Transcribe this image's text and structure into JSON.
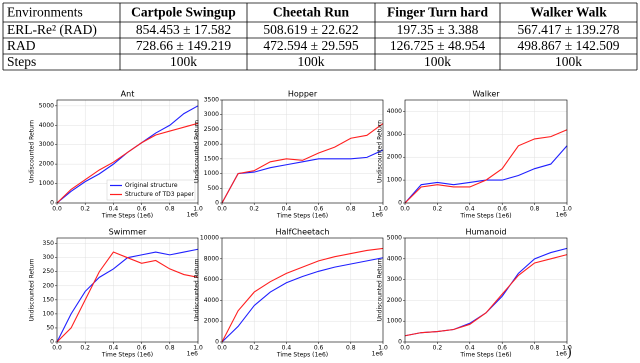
{
  "table": {
    "header": [
      "Environments",
      "Cartpole Swingup",
      "Cheetah Run",
      "Finger Turn hard",
      "Walker Walk"
    ],
    "rows": [
      [
        "ERL-Re² (RAD)",
        "854.453 ± 17.582",
        "508.619 ± 22.622",
        "197.35 ± 3.388",
        "567.417 ± 139.278"
      ],
      [
        "RAD",
        "728.66 ± 149.219",
        "472.594 ± 29.595",
        "126.725 ± 48.954",
        "498.867 ± 142.509"
      ],
      [
        "Steps",
        "100k",
        "100k",
        "100k",
        "100k"
      ]
    ]
  },
  "chart_data": [
    {
      "type": "line",
      "title": "Ant",
      "xlabel": "Time Steps (1e6)",
      "ylabel": "Undiscounted Return",
      "x_offset_label": "1e6",
      "x": [
        0,
        0.1,
        0.2,
        0.3,
        0.4,
        0.5,
        0.6,
        0.7,
        0.8,
        0.9,
        1.0
      ],
      "series": [
        {
          "name": "Original structure",
          "color": "#1f1fff",
          "values": [
            0,
            600,
            1100,
            1500,
            2000,
            2600,
            3100,
            3600,
            4000,
            4600,
            5000
          ]
        },
        {
          "name": "Structure of TD3 paper",
          "color": "#ff1f1f",
          "values": [
            0,
            700,
            1200,
            1700,
            2100,
            2600,
            3100,
            3500,
            3700,
            3900,
            4100
          ]
        }
      ],
      "xlim": [
        0,
        1
      ],
      "xticks": [
        {
          "value": 0,
          "label": "0.0"
        },
        {
          "value": 0.2,
          "label": "0.2"
        },
        {
          "value": 0.4,
          "label": "0.4"
        },
        {
          "value": 0.6,
          "label": "0.6"
        },
        {
          "value": 0.8,
          "label": "0.8"
        },
        {
          "value": 1,
          "label": "1.0"
        }
      ],
      "ylim": [
        0,
        5300
      ],
      "yticks": [
        0,
        1000,
        2000,
        3000,
        4000,
        5000
      ],
      "grid": true,
      "legend": "lower right"
    },
    {
      "type": "line",
      "title": "Hopper",
      "xlabel": "Time Steps (1e6)",
      "ylabel": "Undiscounted Return",
      "x_offset_label": "1e6",
      "x": [
        0,
        0.1,
        0.2,
        0.3,
        0.4,
        0.5,
        0.6,
        0.7,
        0.8,
        0.9,
        1.0
      ],
      "series": [
        {
          "color": "#1f1fff",
          "values": [
            0,
            1000,
            1050,
            1200,
            1300,
            1400,
            1500,
            1500,
            1500,
            1550,
            1800
          ]
        },
        {
          "color": "#ff1f1f",
          "values": [
            0,
            1000,
            1100,
            1400,
            1500,
            1450,
            1700,
            1900,
            2200,
            2300,
            2700
          ]
        }
      ],
      "xlim": [
        0,
        1
      ],
      "xticks": [
        {
          "value": 0,
          "label": "0.0"
        },
        {
          "value": 0.2,
          "label": "0.2"
        },
        {
          "value": 0.4,
          "label": "0.4"
        },
        {
          "value": 0.6,
          "label": "0.6"
        },
        {
          "value": 0.8,
          "label": "0.8"
        },
        {
          "value": 1,
          "label": "1.0"
        }
      ],
      "ylim": [
        0,
        3500
      ],
      "yticks": [
        0,
        500,
        1000,
        1500,
        2000,
        2500,
        3000,
        3500
      ],
      "grid": true
    },
    {
      "type": "line",
      "title": "Walker",
      "xlabel": "Time Steps (1e6)",
      "ylabel": "Undiscounted Return",
      "x_offset_label": "1e6",
      "x": [
        0,
        0.1,
        0.2,
        0.3,
        0.4,
        0.5,
        0.6,
        0.7,
        0.8,
        0.9,
        1.0
      ],
      "series": [
        {
          "color": "#1f1fff",
          "values": [
            0,
            800,
            900,
            800,
            900,
            1000,
            1000,
            1200,
            1500,
            1700,
            2500
          ]
        },
        {
          "color": "#ff1f1f",
          "values": [
            0,
            700,
            800,
            700,
            700,
            1000,
            1500,
            2500,
            2800,
            2900,
            3200
          ]
        }
      ],
      "xlim": [
        0,
        1
      ],
      "xticks": [
        {
          "value": 0,
          "label": "0.0"
        },
        {
          "value": 0.2,
          "label": "0.2"
        },
        {
          "value": 0.4,
          "label": "0.4"
        },
        {
          "value": 0.6,
          "label": "0.6"
        },
        {
          "value": 0.8,
          "label": "0.8"
        },
        {
          "value": 1,
          "label": "1.0"
        }
      ],
      "ylim": [
        0,
        4500
      ],
      "yticks": [
        0,
        1000,
        2000,
        3000,
        4000
      ],
      "grid": true
    },
    {
      "type": "line",
      "title": "Swimmer",
      "xlabel": "Time Steps (1e6)",
      "ylabel": "Undiscounted Return",
      "x_offset_label": "1e6",
      "x": [
        0,
        0.1,
        0.2,
        0.3,
        0.4,
        0.5,
        0.6,
        0.7,
        0.8,
        0.9,
        1.0
      ],
      "series": [
        {
          "color": "#1f1fff",
          "values": [
            0,
            100,
            180,
            230,
            260,
            300,
            310,
            320,
            310,
            320,
            330
          ]
        },
        {
          "color": "#ff1f1f",
          "values": [
            0,
            50,
            150,
            250,
            320,
            300,
            280,
            290,
            260,
            240,
            230
          ]
        }
      ],
      "xlim": [
        0,
        1
      ],
      "xticks": [
        {
          "value": 0,
          "label": "0.0"
        },
        {
          "value": 0.2,
          "label": "0.2"
        },
        {
          "value": 0.4,
          "label": "0.4"
        },
        {
          "value": 0.6,
          "label": "0.6"
        },
        {
          "value": 0.8,
          "label": "0.8"
        },
        {
          "value": 1,
          "label": "1.0"
        }
      ],
      "ylim": [
        0,
        370
      ],
      "yticks": [
        0,
        50,
        100,
        150,
        200,
        250,
        300,
        350
      ],
      "grid": true
    },
    {
      "type": "line",
      "title": "HalfCheetach",
      "xlabel": "Time Steps (1e6)",
      "ylabel": "Undiscounted Return",
      "x_offset_label": "1e6",
      "x": [
        0,
        0.1,
        0.2,
        0.3,
        0.4,
        0.5,
        0.6,
        0.7,
        0.8,
        0.9,
        1.0
      ],
      "series": [
        {
          "color": "#1f1fff",
          "values": [
            0,
            1500,
            3500,
            4800,
            5700,
            6300,
            6800,
            7200,
            7500,
            7800,
            8100
          ]
        },
        {
          "color": "#ff1f1f",
          "values": [
            0,
            3000,
            4800,
            5800,
            6600,
            7200,
            7800,
            8200,
            8500,
            8800,
            9000
          ]
        }
      ],
      "xlim": [
        0,
        1
      ],
      "xticks": [
        {
          "value": 0,
          "label": "0.0"
        },
        {
          "value": 0.2,
          "label": "0.2"
        },
        {
          "value": 0.4,
          "label": "0.4"
        },
        {
          "value": 0.6,
          "label": "0.6"
        },
        {
          "value": 0.8,
          "label": "0.8"
        },
        {
          "value": 1,
          "label": "1.0"
        }
      ],
      "ylim": [
        0,
        10000
      ],
      "yticks": [
        0,
        2000,
        4000,
        6000,
        8000,
        10000
      ],
      "grid": true
    },
    {
      "type": "line",
      "title": "Humanoid",
      "xlabel": "Time Steps (1e6)",
      "ylabel": "Undiscounted Return",
      "x_offset_label": "1e6",
      "x": [
        0,
        0.1,
        0.2,
        0.3,
        0.4,
        0.5,
        0.6,
        0.7,
        0.8,
        0.9,
        1.0
      ],
      "series": [
        {
          "color": "#1f1fff",
          "values": [
            300,
            450,
            500,
            600,
            900,
            1400,
            2200,
            3300,
            4000,
            4300,
            4500
          ]
        },
        {
          "color": "#ff1f1f",
          "values": [
            300,
            450,
            500,
            600,
            850,
            1400,
            2300,
            3200,
            3800,
            4000,
            4200
          ]
        }
      ],
      "xlim": [
        0,
        1
      ],
      "xticks": [
        {
          "value": 0,
          "label": "0.0"
        },
        {
          "value": 0.2,
          "label": "0.2"
        },
        {
          "value": 0.4,
          "label": "0.4"
        },
        {
          "value": 0.6,
          "label": "0.6"
        },
        {
          "value": 0.8,
          "label": "0.8"
        },
        {
          "value": 1,
          "label": "1.0"
        }
      ],
      "ylim": [
        0,
        5000
      ],
      "yticks": [
        0,
        1000,
        2000,
        3000,
        4000,
        5000
      ],
      "grid": true
    }
  ],
  "footnote": ")"
}
